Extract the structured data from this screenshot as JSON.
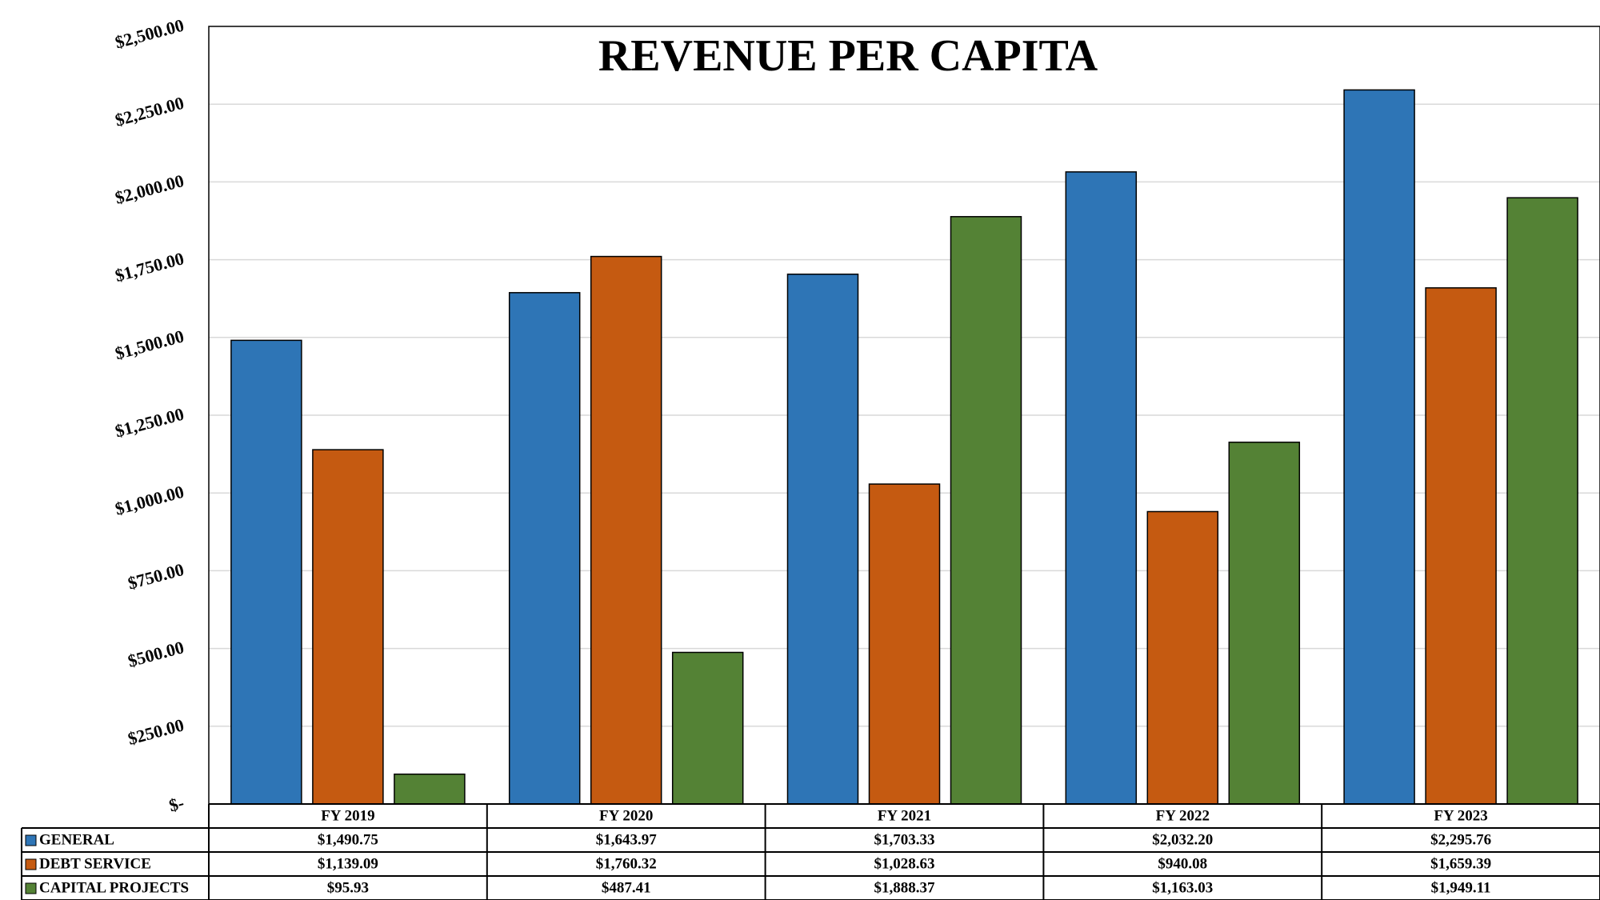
{
  "chart_data": {
    "type": "bar",
    "title": "REVENUE PER CAPITA",
    "xlabel": "",
    "ylabel": "",
    "categories": [
      "FY 2019",
      "FY 2020",
      "FY 2021",
      "FY 2022",
      "FY 2023"
    ],
    "ylim": [
      0,
      2500
    ],
    "yticks": [
      0,
      250,
      500,
      750,
      1000,
      1250,
      1500,
      1750,
      2000,
      2250,
      2500
    ],
    "ytick_labels": [
      "$-",
      "$250.00",
      "$500.00",
      "$750.00",
      "$1,000.00",
      "$1,250.00",
      "$1,500.00",
      "$1,750.00",
      "$2,000.00",
      "$2,250.00",
      "$2,500.00"
    ],
    "grid": true,
    "legend": "data-table",
    "series": [
      {
        "name": "GENERAL",
        "color": "#2E75B6",
        "values": [
          1490.75,
          1643.97,
          1703.33,
          2032.2,
          2295.76
        ],
        "labels": [
          "$1,490.75",
          "$1,643.97",
          "$1,703.33",
          "$2,032.20",
          "$2,295.76"
        ]
      },
      {
        "name": "DEBT SERVICE",
        "color": "#C55A11",
        "values": [
          1139.09,
          1760.32,
          1028.63,
          940.08,
          1659.39
        ],
        "labels": [
          "$1,139.09",
          "$1,760.32",
          "$1,028.63",
          "$940.08",
          "$1,659.39"
        ]
      },
      {
        "name": "CAPITAL PROJECTS",
        "color": "#548235",
        "values": [
          95.93,
          487.41,
          1888.37,
          1163.03,
          1949.11
        ],
        "labels": [
          "$95.93",
          "$487.41",
          "$1,888.37",
          "$1,163.03",
          "$1,949.11"
        ]
      }
    ]
  }
}
